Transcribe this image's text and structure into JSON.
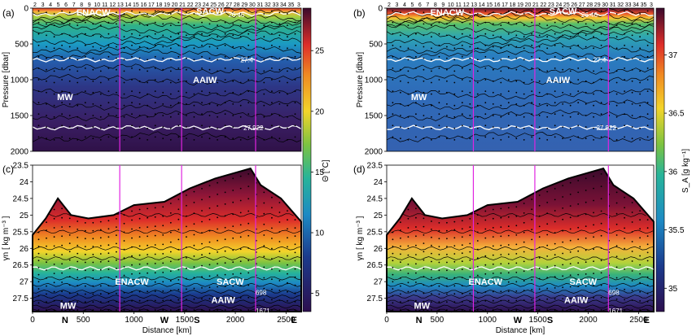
{
  "panels": [
    {
      "id": "a",
      "label": "(a)",
      "variable": "theta",
      "yaxis": "pressure"
    },
    {
      "id": "b",
      "label": "(b)",
      "variable": "salinity",
      "yaxis": "pressure"
    },
    {
      "id": "c",
      "label": "(c)",
      "variable": "theta",
      "yaxis": "density"
    },
    {
      "id": "d",
      "label": "(d)",
      "variable": "salinity",
      "yaxis": "density"
    }
  ],
  "pressure_axis": {
    "label": "Pressure [dbar]",
    "ticks": [
      "0",
      "500",
      "1000",
      "1500",
      "2000"
    ],
    "range": [
      0,
      2000
    ]
  },
  "density_axis": {
    "label": "γn [ kg m⁻³ ]",
    "ticks": [
      "23.5",
      "24",
      "24.5",
      "25",
      "25.5",
      "26",
      "26.5",
      "27",
      "27.5"
    ],
    "range": [
      23.5,
      27.9
    ]
  },
  "distance_axis": {
    "label": "Distance [km]",
    "ticks": [
      "0",
      "500",
      "1000",
      "1500",
      "2000",
      "2500"
    ],
    "range": [
      0,
      2650
    ]
  },
  "theta_colorbar": {
    "label": "Θ [°C]",
    "ticks": [
      "5",
      "10",
      "15",
      "20",
      "25"
    ],
    "range": [
      3.5,
      28.5
    ]
  },
  "salinity_colorbar": {
    "label": "S_A [g kg⁻¹]",
    "ticks": [
      "35",
      "35.5",
      "36",
      "36.5",
      "37"
    ],
    "range": [
      34.8,
      37.4
    ]
  },
  "water_masses_pressure": [
    "ENACW",
    "SACW",
    "AAIW",
    "MW"
  ],
  "water_masses_density": [
    "ENACW",
    "SACW",
    "AAIW",
    "MW"
  ],
  "isopycnal_labels_pressure": [
    "26.46",
    "27.4",
    "27.922"
  ],
  "isopycnal_labels_density": [
    "698",
    "1671"
  ],
  "compass_marks": [
    {
      "label": "N",
      "km": 320
    },
    {
      "label": "W",
      "km": 1300
    },
    {
      "label": "S",
      "km": 1620
    },
    {
      "label": "E",
      "km": 2580
    }
  ],
  "section_lines_km": [
    860,
    1470,
    2200
  ],
  "stations": [
    "2",
    "3",
    "4",
    "5",
    "6",
    "7",
    "8",
    "9",
    "10",
    "11",
    "12",
    "13",
    "14",
    "15",
    "16",
    "17",
    "18",
    "19",
    "20",
    "21",
    "22",
    "23",
    "24",
    "25",
    "26",
    "27",
    "28",
    "29",
    "30",
    "31",
    "32",
    "33",
    "34",
    "35",
    "3"
  ],
  "chart_data": [
    {
      "type": "heatmap",
      "panel": "a",
      "title": "",
      "xlabel": "Distance [km]",
      "ylabel": "Pressure [dbar]",
      "xlim": [
        0,
        2650
      ],
      "ylim": [
        2000,
        0
      ],
      "colorbar_label": "Θ [°C]",
      "colorbar_range": [
        3.5,
        28.5
      ],
      "isolines": [
        {
          "label": "26.46",
          "depth_dbar": 80
        },
        {
          "label": "27.4",
          "depth_dbar": 720
        },
        {
          "label": "27.922",
          "depth_dbar": 1670
        }
      ]
    },
    {
      "type": "heatmap",
      "panel": "b",
      "title": "",
      "xlabel": "Distance [km]",
      "ylabel": "Pressure [dbar]",
      "xlim": [
        0,
        2650
      ],
      "ylim": [
        2000,
        0
      ],
      "colorbar_label": "S_A [g kg⁻¹]",
      "colorbar_range": [
        34.8,
        37.4
      ],
      "isolines": [
        {
          "label": "26.46",
          "depth_dbar": 80
        },
        {
          "label": "27.4",
          "depth_dbar": 720
        },
        {
          "label": "27.922",
          "depth_dbar": 1670
        }
      ]
    },
    {
      "type": "heatmap",
      "panel": "c",
      "title": "",
      "xlabel": "Distance [km]",
      "ylabel": "γn [ kg m⁻³ ]",
      "xlim": [
        0,
        2650
      ],
      "ylim": [
        27.9,
        23.5
      ],
      "colorbar_label": "Θ [°C]",
      "surface_density": [
        {
          "km": 0,
          "gn": 25.6
        },
        {
          "km": 130,
          "gn": 25.1
        },
        {
          "km": 250,
          "gn": 24.5
        },
        {
          "km": 380,
          "gn": 25.0
        },
        {
          "km": 550,
          "gn": 25.1
        },
        {
          "km": 800,
          "gn": 25.0
        },
        {
          "km": 1000,
          "gn": 24.7
        },
        {
          "km": 1300,
          "gn": 24.6
        },
        {
          "km": 1550,
          "gn": 24.2
        },
        {
          "km": 1800,
          "gn": 23.9
        },
        {
          "km": 2150,
          "gn": 23.6
        },
        {
          "km": 2250,
          "gn": 24.1
        },
        {
          "km": 2450,
          "gn": 24.5
        },
        {
          "km": 2650,
          "gn": 25.2
        }
      ],
      "isolines": [
        {
          "label": "698",
          "gn": 27.3
        },
        {
          "label": "1671",
          "gn": 27.87
        }
      ]
    },
    {
      "type": "heatmap",
      "panel": "d",
      "title": "",
      "xlabel": "Distance [km]",
      "ylabel": "γn [ kg m⁻³ ]",
      "xlim": [
        0,
        2650
      ],
      "ylim": [
        27.9,
        23.5
      ],
      "colorbar_label": "S_A [g kg⁻¹]",
      "isolines": [
        {
          "label": "698",
          "gn": 27.3
        },
        {
          "label": "1671",
          "gn": 27.87
        }
      ]
    }
  ]
}
